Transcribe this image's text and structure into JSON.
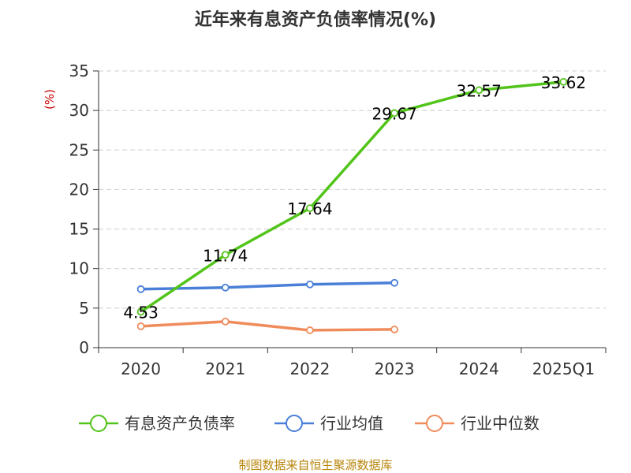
{
  "chart_data": {
    "type": "line",
    "title": "近年来有息资产负债率情况(%)",
    "ylabel": "(%)",
    "xlabel": "",
    "categories": [
      "2020",
      "2021",
      "2022",
      "2023",
      "2024",
      "2025Q1"
    ],
    "ylim": [
      0,
      35
    ],
    "yticks": [
      0,
      5,
      10,
      15,
      20,
      25,
      30,
      35
    ],
    "grid": true,
    "legend_position": "bottom",
    "series": [
      {
        "name": "有息资产负债率",
        "color": "#52c41a",
        "values": [
          4.53,
          11.74,
          17.64,
          29.67,
          32.57,
          33.62
        ],
        "labels": [
          "4.53",
          "11.74",
          "17.64",
          "29.67",
          "32.57",
          "33.62"
        ]
      },
      {
        "name": "行业均值",
        "color": "#4a7fd8",
        "values": [
          7.4,
          7.6,
          8.0,
          8.2,
          null,
          null
        ]
      },
      {
        "name": "行业中位数",
        "color": "#f08c5c",
        "values": [
          2.7,
          3.3,
          2.2,
          2.3,
          null,
          null
        ]
      }
    ]
  },
  "source": "制图数据来自恒生聚源数据库"
}
